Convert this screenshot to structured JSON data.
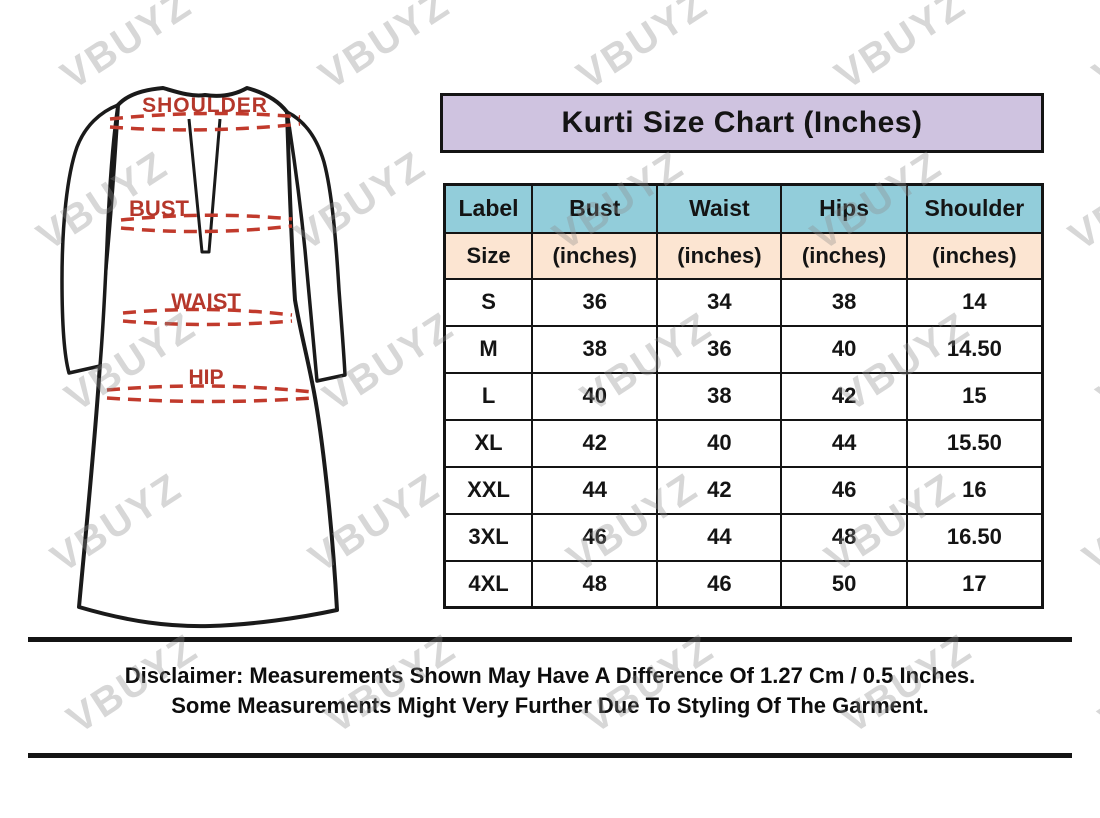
{
  "title": "Kurti Size Chart (Inches)",
  "watermark": {
    "text": "VBUYZ"
  },
  "diagram": {
    "shoulder_label": "SHOULDER",
    "bust_label": "BUST",
    "waist_label": "WAIST",
    "hip_label": "HIP"
  },
  "chart_data": {
    "type": "table",
    "title": "Kurti Size Chart (Inches)",
    "columns": [
      "Label",
      "Bust",
      "Waist",
      "Hips",
      "Shoulder"
    ],
    "units_row": [
      "Size",
      "(inches)",
      "(inches)",
      "(inches)",
      "(inches)"
    ],
    "rows": [
      [
        "S",
        "36",
        "34",
        "38",
        "14"
      ],
      [
        "M",
        "38",
        "36",
        "40",
        "14.50"
      ],
      [
        "L",
        "40",
        "38",
        "42",
        "15"
      ],
      [
        "XL",
        "42",
        "40",
        "44",
        "15.50"
      ],
      [
        "XXL",
        "44",
        "42",
        "46",
        "16"
      ],
      [
        "3XL",
        "46",
        "44",
        "48",
        "16.50"
      ],
      [
        "4XL",
        "48",
        "46",
        "50",
        "17"
      ]
    ]
  },
  "disclaimer": {
    "line1": "Disclaimer: Measurements Shown May Have A Difference Of 1.27 Cm / 0.5 Inches.",
    "line2": "Some Measurements Might Very Further Due To Styling Of The Garment."
  },
  "colors": {
    "header_blue": "#92cdda",
    "units_peach": "#fce5d2",
    "title_lavender": "#cfc3e0",
    "measure_red": "#b5372b",
    "dash_red": "#c13a2c",
    "line_black": "#141414",
    "watermark_gray": "#c9c9c9"
  }
}
